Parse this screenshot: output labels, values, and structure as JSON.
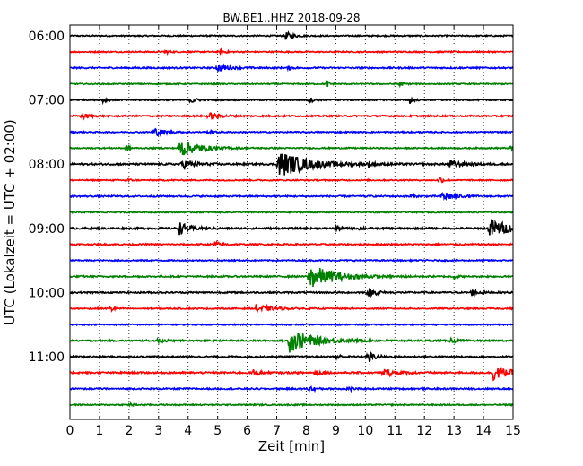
{
  "chart_data": {
    "type": "line",
    "title": "BW.BE1..HHZ 2018-09-28",
    "xlabel": "Zeit  [min]",
    "ylabel": "UTC (Lokalzeit = UTC + 02:00)",
    "xlim": [
      0,
      15
    ],
    "x_ticks": [
      0,
      1,
      2,
      3,
      4,
      5,
      6,
      7,
      8,
      9,
      10,
      11,
      12,
      13,
      14,
      15
    ],
    "x_tick_labels": [
      "0",
      "1",
      "2",
      "3",
      "4",
      "5",
      "6",
      "7",
      "8",
      "9",
      "10",
      "11",
      "12",
      "13",
      "14",
      "15"
    ],
    "y_tick_labels": [
      "06:00",
      "07:00",
      "08:00",
      "09:00",
      "10:00",
      "11:00"
    ],
    "grid": "vertical dotted lines at each minute",
    "colors": [
      "#000000",
      "#ff0000",
      "#0000ff",
      "#008000"
    ],
    "trace_start_times": [
      "06:00",
      "06:15",
      "06:30",
      "06:45",
      "07:00",
      "07:15",
      "07:30",
      "07:45",
      "08:00",
      "08:15",
      "08:30",
      "08:45",
      "09:00",
      "09:15",
      "09:30",
      "09:45",
      "10:00",
      "10:15",
      "10:30",
      "10:45",
      "11:00",
      "11:15",
      "11:30",
      "11:45"
    ],
    "traces": [
      {
        "noise": 0.1,
        "events": [
          [
            7.3,
            0.6,
            0.25
          ]
        ]
      },
      {
        "noise": 0.1,
        "events": [
          [
            3.2,
            0.4,
            0.1
          ],
          [
            5.1,
            0.5,
            0.12
          ]
        ]
      },
      {
        "noise": 0.12,
        "events": [
          [
            5.0,
            0.7,
            0.3
          ],
          [
            7.4,
            0.4,
            0.1
          ]
        ]
      },
      {
        "noise": 0.09,
        "events": [
          [
            8.7,
            0.6,
            0.1
          ],
          [
            11.1,
            0.7,
            0.12
          ]
        ]
      },
      {
        "noise": 0.1,
        "events": [
          [
            1.1,
            0.5,
            0.1
          ],
          [
            4.1,
            0.6,
            0.15
          ],
          [
            8.1,
            0.5,
            0.12
          ],
          [
            11.5,
            0.6,
            0.1
          ]
        ]
      },
      {
        "noise": 0.12,
        "events": [
          [
            0.4,
            0.5,
            0.2
          ],
          [
            4.7,
            0.5,
            0.3
          ]
        ]
      },
      {
        "noise": 0.1,
        "events": [
          [
            2.8,
            0.8,
            0.3
          ],
          [
            4.7,
            0.4,
            0.1
          ]
        ]
      },
      {
        "noise": 0.1,
        "events": [
          [
            1.9,
            0.5,
            0.1
          ],
          [
            3.7,
            1.5,
            0.6
          ],
          [
            14.9,
            0.5,
            0.15
          ]
        ]
      },
      {
        "noise": 0.14,
        "events": [
          [
            3.8,
            0.7,
            0.4
          ],
          [
            7.05,
            2.2,
            0.9
          ],
          [
            10.1,
            0.5,
            0.1
          ],
          [
            12.8,
            0.6,
            0.4
          ]
        ]
      },
      {
        "noise": 0.1,
        "events": [
          [
            1.9,
            0.4,
            0.1
          ],
          [
            12.5,
            0.7,
            0.1
          ]
        ]
      },
      {
        "noise": 0.12,
        "events": [
          [
            11.5,
            0.5,
            0.1
          ],
          [
            12.6,
            1.0,
            0.3
          ]
        ]
      },
      {
        "noise": 0.09,
        "events": []
      },
      {
        "noise": 0.14,
        "events": [
          [
            3.7,
            1.0,
            0.3
          ],
          [
            9.0,
            0.5,
            0.15
          ],
          [
            9.8,
            0.4,
            0.1
          ],
          [
            14.2,
            1.6,
            0.6
          ]
        ]
      },
      {
        "noise": 0.12,
        "events": [
          [
            4.9,
            0.5,
            0.15
          ]
        ]
      },
      {
        "noise": 0.1,
        "events": []
      },
      {
        "noise": 0.12,
        "events": [
          [
            8.1,
            2.0,
            0.8
          ],
          [
            13.0,
            0.4,
            0.1
          ]
        ]
      },
      {
        "noise": 0.12,
        "events": [
          [
            10.1,
            0.6,
            0.2
          ],
          [
            10.4,
            0.4,
            0.1
          ],
          [
            13.6,
            0.5,
            0.2
          ]
        ]
      },
      {
        "noise": 0.1,
        "events": [
          [
            1.4,
            0.5,
            0.1
          ],
          [
            6.3,
            0.6,
            0.5
          ]
        ]
      },
      {
        "noise": 0.09,
        "events": []
      },
      {
        "noise": 0.12,
        "events": [
          [
            3.0,
            0.5,
            0.15
          ],
          [
            7.4,
            1.9,
            0.8
          ],
          [
            12.9,
            0.4,
            0.2
          ]
        ]
      },
      {
        "noise": 0.12,
        "events": [
          [
            9.0,
            0.5,
            0.15
          ],
          [
            10.1,
            0.9,
            0.2
          ]
        ]
      },
      {
        "noise": 0.14,
        "events": [
          [
            6.2,
            0.5,
            0.2
          ],
          [
            8.3,
            0.5,
            0.2
          ],
          [
            10.6,
            0.6,
            0.4
          ],
          [
            14.3,
            1.2,
            0.5
          ]
        ]
      },
      {
        "noise": 0.12,
        "events": [
          [
            8.1,
            0.5,
            0.15
          ],
          [
            9.4,
            0.6,
            0.1
          ]
        ]
      },
      {
        "noise": 0.1,
        "events": [
          [
            2.0,
            0.4,
            0.1
          ]
        ]
      }
    ]
  }
}
